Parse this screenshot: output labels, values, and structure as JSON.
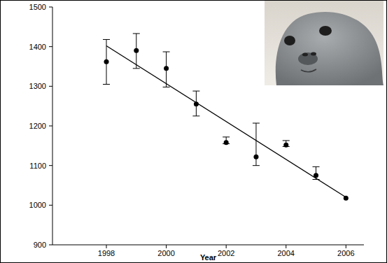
{
  "chart_data": {
    "type": "scatter",
    "x_label": "Year",
    "xlim": [
      1996.2,
      2006.6
    ],
    "xticks": [
      1998,
      2000,
      2002,
      2004,
      2006
    ],
    "ylim": [
      900,
      1500
    ],
    "yticks": [
      900,
      1000,
      1100,
      1200,
      1300,
      1400,
      1500
    ],
    "grid": false,
    "series": [
      {
        "type": "scatter",
        "color": "#000000",
        "marker": "circle",
        "x": [
          1998,
          1999,
          2000,
          2001,
          2002,
          2003,
          2004,
          2005,
          2006
        ],
        "values": [
          1362,
          1390,
          1345,
          1255,
          1158,
          1122,
          1152,
          1075,
          1018
        ],
        "error_lower": [
          1305,
          1345,
          1298,
          1225,
          1155,
          1100,
          1148,
          1065,
          null
        ],
        "error_upper": [
          1418,
          1433,
          1387,
          1288,
          1172,
          1207,
          1163,
          1097,
          null
        ]
      },
      {
        "type": "line",
        "color": "#000000",
        "line_style": "solid",
        "x": [
          1998,
          2006
        ],
        "values": [
          1402,
          1020
        ]
      }
    ]
  }
}
